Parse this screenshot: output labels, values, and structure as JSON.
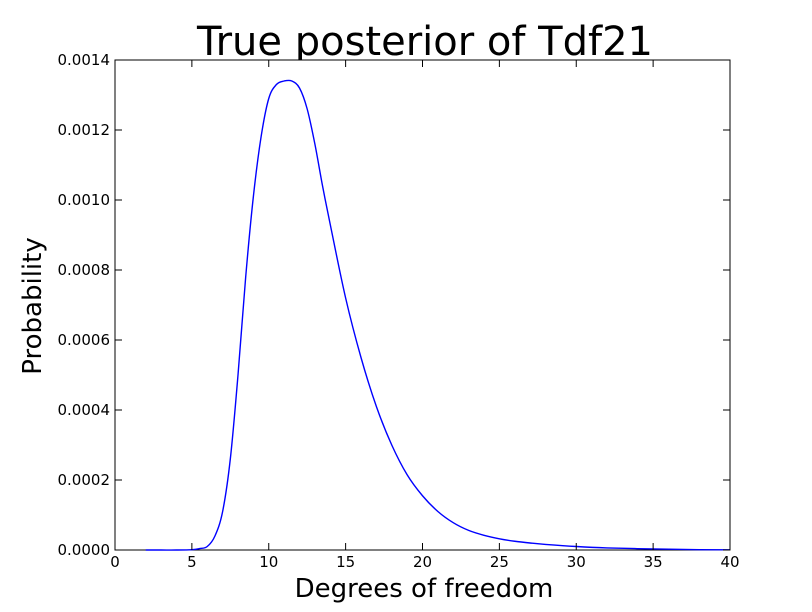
{
  "chart_data": {
    "type": "line",
    "title": "True posterior of Tdf21",
    "xlabel": "Degrees of freedom",
    "ylabel": "Probability",
    "xlim": [
      0,
      40
    ],
    "ylim": [
      0,
      0.0014
    ],
    "xticks": [
      "0",
      "5",
      "10",
      "15",
      "20",
      "25",
      "30",
      "35",
      "40"
    ],
    "yticks": [
      "0.0000",
      "0.0002",
      "0.0004",
      "0.0006",
      "0.0008",
      "0.0010",
      "0.0012",
      "0.0014"
    ],
    "grid": false,
    "legend": "none",
    "line_color": "#0000ff",
    "series": [
      {
        "x": [
          2,
          3,
          4,
          5,
          5.5,
          6,
          6.5,
          7,
          7.5,
          8,
          8.5,
          9,
          9.5,
          10,
          10.5,
          11,
          11.5,
          12,
          12.5,
          13,
          13.5,
          14,
          15,
          16,
          17,
          18,
          19,
          20,
          21,
          22,
          23,
          24,
          25,
          26,
          27,
          28,
          30,
          32,
          35,
          38,
          40
        ],
        "y": [
          0,
          0,
          0,
          1e-06,
          4e-06,
          1e-05,
          4e-05,
          0.00011,
          0.00026,
          0.0005,
          0.00078,
          0.00101,
          0.00118,
          0.00129,
          0.00133,
          0.00134,
          0.00134,
          0.00132,
          0.00126,
          0.00116,
          0.00104,
          0.00093,
          0.00072,
          0.00055,
          0.00041,
          0.0003,
          0.000215,
          0.000155,
          0.00011,
          7.8e-05,
          5.6e-05,
          4.2e-05,
          3.2e-05,
          2.5e-05,
          2e-05,
          1.6e-05,
          1e-05,
          6e-06,
          3e-06,
          1e-06,
          5e-07
        ]
      }
    ]
  }
}
